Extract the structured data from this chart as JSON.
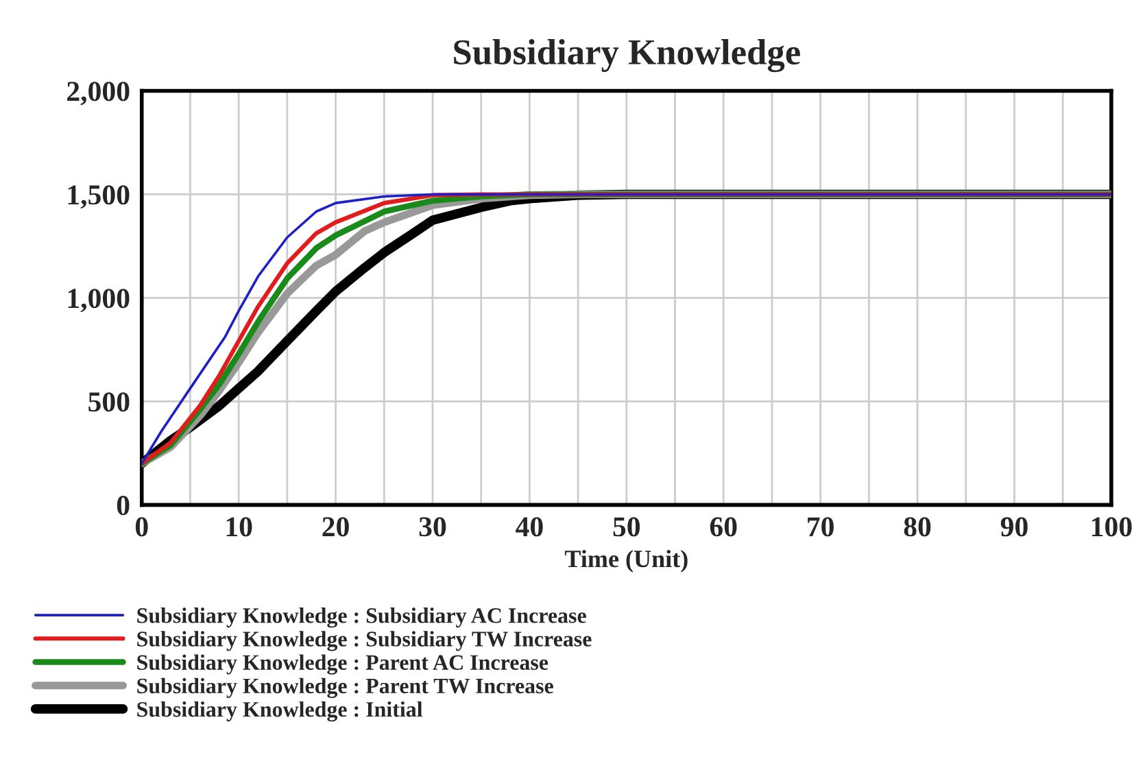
{
  "chart_data": {
    "type": "line",
    "title": "Subsidiary Knowledge",
    "xlabel": "Time (Unit)",
    "xlim": [
      0,
      100
    ],
    "ylim": [
      0,
      2000
    ],
    "xticks": [
      0,
      {
        "value": 5,
        "label": null
      },
      10,
      {
        "value": 15,
        "label": null
      },
      20,
      {
        "value": 25,
        "label": null
      },
      30,
      {
        "value": 35,
        "label": null
      },
      40,
      {
        "value": 45,
        "label": null
      },
      50,
      {
        "value": 55,
        "label": null
      },
      60,
      {
        "value": 65,
        "label": null
      },
      70,
      {
        "value": 75,
        "label": null
      },
      80,
      {
        "value": 85,
        "label": null
      },
      90,
      {
        "value": 95,
        "label": null
      },
      100
    ],
    "yticks": [
      0,
      {
        "value": 500,
        "label": "500"
      },
      {
        "value": 1000,
        "label": "1,000"
      },
      {
        "value": 1500,
        "label": "1,500"
      },
      {
        "value": 2000,
        "label": "2,000"
      }
    ],
    "grid": true,
    "legend": "bottom",
    "line_style": "solid",
    "series": [
      {
        "name": "Subsidiary Knowledge : Subsidiary AC Increase",
        "color": "#1f1fc8",
        "x": [
          0,
          2,
          5,
          8.6,
          10,
          12,
          15,
          18,
          20,
          25,
          30,
          100
        ],
        "values": [
          200,
          354,
          563,
          812,
          937,
          1104,
          1292,
          1417,
          1458,
          1490,
          1500,
          1500
        ]
      },
      {
        "name": "Subsidiary Knowledge : Subsidiary TW Increase",
        "color": "#e01c1c",
        "x": [
          0,
          3,
          6,
          8,
          10,
          12,
          15,
          18,
          20,
          25,
          30,
          35,
          100
        ],
        "values": [
          200,
          302,
          479,
          625,
          792,
          958,
          1167,
          1312,
          1365,
          1458,
          1496,
          1500,
          1500
        ]
      },
      {
        "name": "Subsidiary Knowledge : Parent AC Increase",
        "color": "#1a8a1a",
        "x": [
          0,
          3,
          6,
          8,
          10,
          12,
          15,
          18,
          20,
          25,
          30,
          35,
          40,
          100
        ],
        "values": [
          200,
          290,
          460,
          583,
          729,
          885,
          1094,
          1240,
          1302,
          1417,
          1469,
          1490,
          1500,
          1500
        ]
      },
      {
        "name": "Subsidiary Knowledge : Parent TW Increase",
        "color": "#999999",
        "x": [
          0,
          3,
          6,
          8,
          10,
          12,
          15,
          18,
          20,
          23,
          25,
          30,
          35,
          40,
          45,
          100
        ],
        "values": [
          200,
          280,
          430,
          552,
          688,
          833,
          1021,
          1156,
          1208,
          1323,
          1365,
          1448,
          1479,
          1496,
          1500,
          1500
        ]
      },
      {
        "name": "Subsidiary Knowledge : Initial",
        "color": "#000000",
        "x": [
          0,
          3,
          5,
          8,
          10,
          12,
          15,
          18,
          20,
          23,
          25,
          28,
          30,
          35,
          38,
          40,
          45,
          50,
          100
        ],
        "values": [
          200,
          312,
          375,
          479,
          563,
          646,
          792,
          937,
          1031,
          1146,
          1219,
          1312,
          1375,
          1437,
          1469,
          1479,
          1496,
          1500,
          1500
        ]
      }
    ]
  }
}
